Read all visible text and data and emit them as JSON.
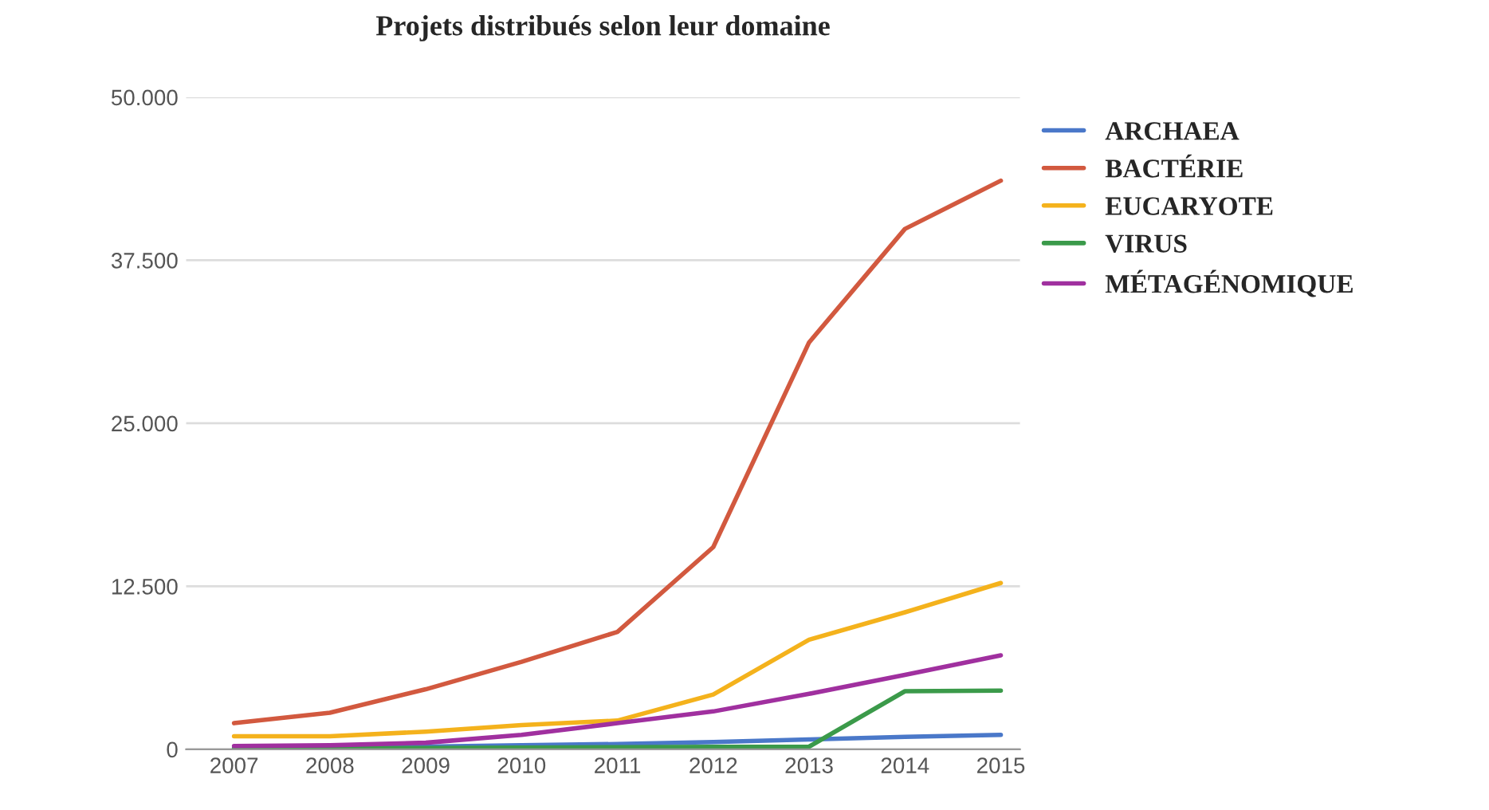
{
  "chart_data": {
    "type": "line",
    "title": "Projets distribués selon leur domaine",
    "x": [
      2007,
      2008,
      2009,
      2010,
      2011,
      2012,
      2013,
      2014,
      2015
    ],
    "xlim": [
      2006.5,
      2015.2
    ],
    "xticks": [
      2007,
      2008,
      2009,
      2010,
      2011,
      2012,
      2013,
      2014,
      2015
    ],
    "ylim": [
      0,
      50000
    ],
    "yticks": [
      {
        "value": 0,
        "label": "0"
      },
      {
        "value": 12500,
        "label": "12.500"
      },
      {
        "value": 25000,
        "label": "25.000"
      },
      {
        "value": 37500,
        "label": "37.500"
      },
      {
        "value": 50000,
        "label": "50.000"
      }
    ],
    "grid": "y",
    "legend": "top right",
    "marker": "none",
    "line_style": "solid",
    "series": [
      {
        "name": "ARCHAEA",
        "color": "#4a78c9",
        "values": [
          100,
          150,
          200,
          300,
          400,
          550,
          750,
          950,
          1100
        ]
      },
      {
        "name": "BACTÉRIE",
        "color": "#d2593f",
        "values": [
          2000,
          2800,
          4600,
          6700,
          9000,
          15500,
          31200,
          39900,
          43600
        ]
      },
      {
        "name": "EUCARYOTE",
        "color": "#f4b21c",
        "values": [
          1000,
          1000,
          1350,
          1850,
          2200,
          4200,
          8400,
          10500,
          12750
        ]
      },
      {
        "name": "VIRUS",
        "color": "#3b9a4a",
        "values": [
          50,
          80,
          100,
          120,
          150,
          180,
          200,
          4450,
          4500
        ]
      },
      {
        "name": "MÉTAGÉNOMIQUE",
        "color": "#a0309f",
        "values": [
          250,
          300,
          500,
          1100,
          2000,
          2900,
          4250,
          5700,
          7200
        ]
      }
    ]
  }
}
